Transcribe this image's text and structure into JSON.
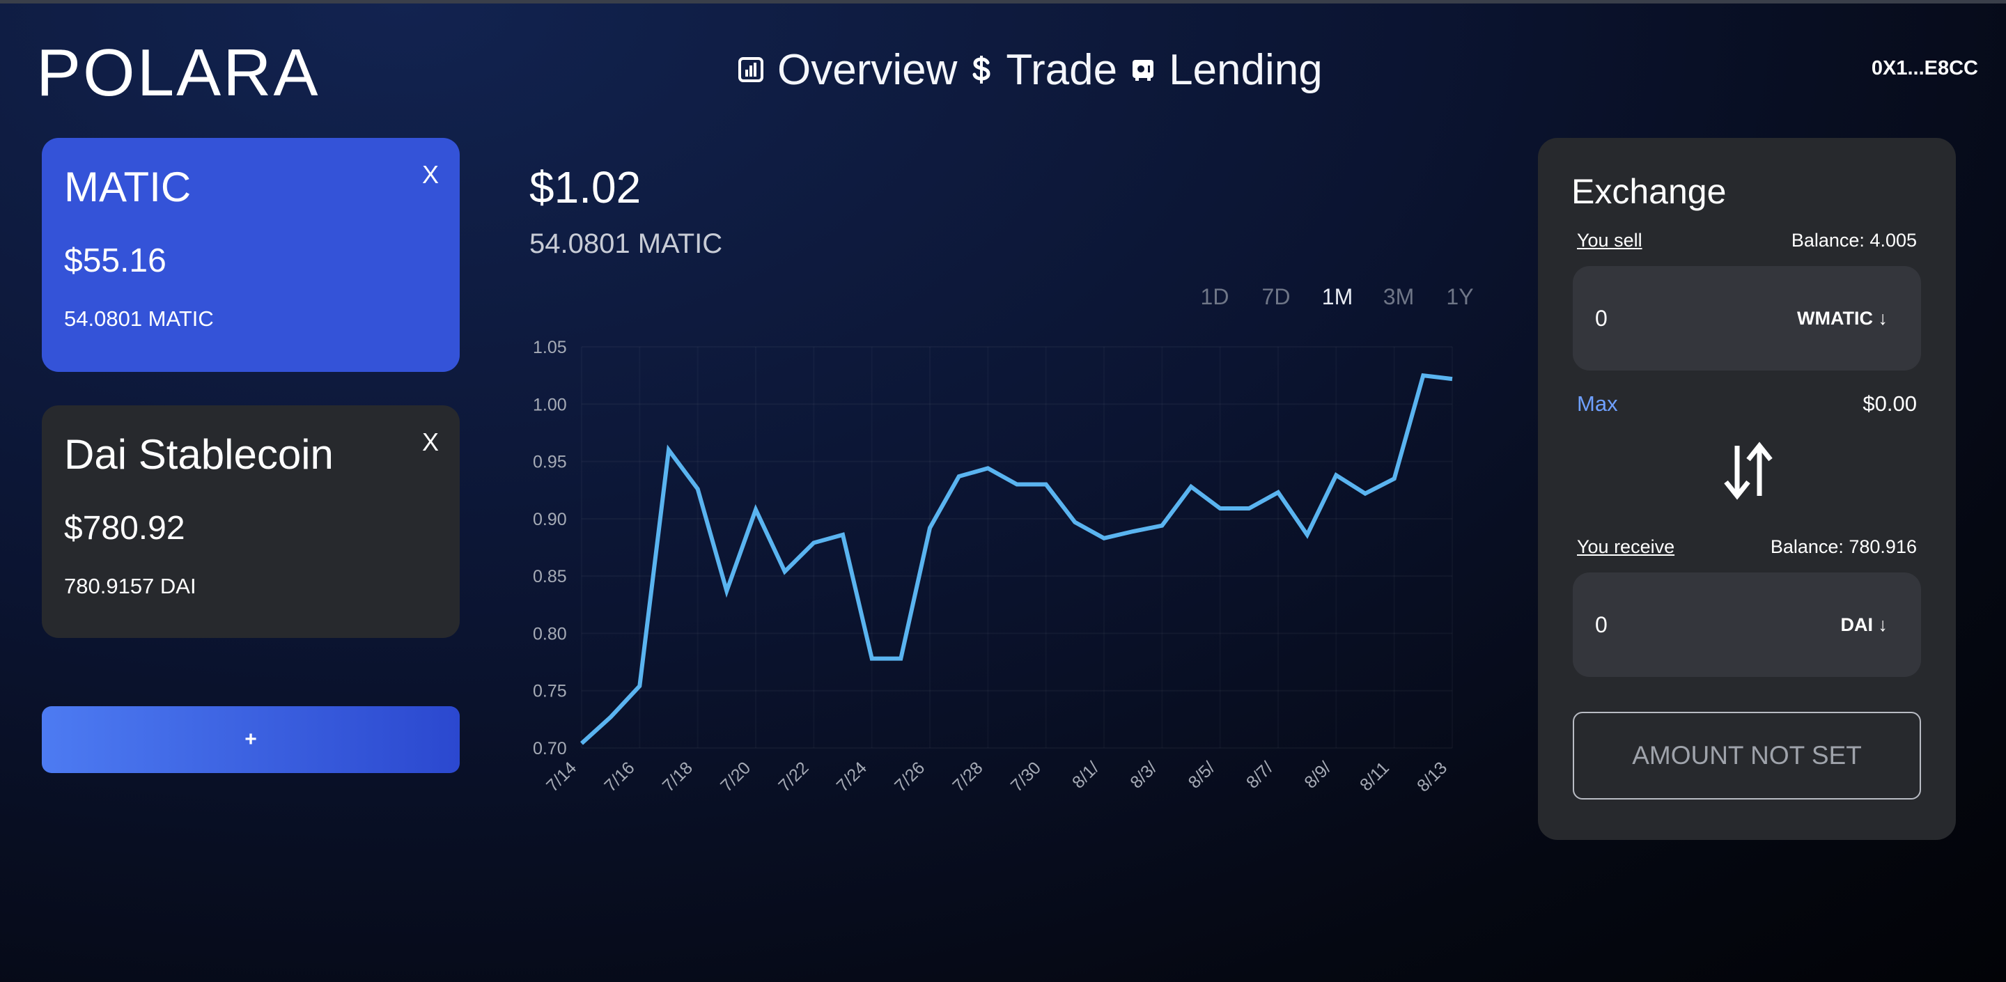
{
  "app": {
    "logo": "POLARA",
    "wallet": "0X1...E8CC"
  },
  "nav": [
    {
      "label": "Overview",
      "icon": "chart-icon"
    },
    {
      "label": "Trade",
      "icon": "dollar-icon"
    },
    {
      "label": "Lending",
      "icon": "safe-icon"
    }
  ],
  "tokens": [
    {
      "name": "MATIC",
      "value": "$55.16",
      "amount": "54.0801 MATIC",
      "close": "X"
    },
    {
      "name": "Dai Stablecoin",
      "value": "$780.92",
      "amount": "780.9157 DAI",
      "close": "X"
    }
  ],
  "add_button": {
    "label": "+"
  },
  "main": {
    "price": "$1.02",
    "subtitle": "54.0801 MATIC"
  },
  "ranges": [
    "1D",
    "7D",
    "1M",
    "3M",
    "1Y"
  ],
  "selected_range": "1M",
  "chart_data": {
    "type": "line",
    "x": [
      "7/14",
      "7/15",
      "7/16",
      "7/17",
      "7/18",
      "7/19",
      "7/20",
      "7/21",
      "7/22",
      "7/23",
      "7/24",
      "7/25",
      "7/26",
      "7/27",
      "7/28",
      "7/29",
      "7/30",
      "7/31",
      "8/1/",
      "8/2",
      "8/3/",
      "8/4",
      "8/5/",
      "8/6",
      "8/7/",
      "8/8",
      "8/9/",
      "8/10",
      "8/11",
      "8/12",
      "8/13"
    ],
    "x_tick_labels": [
      "7/14",
      "7/16",
      "7/18",
      "7/20",
      "7/22",
      "7/24",
      "7/26",
      "7/28",
      "7/30",
      "8/1/",
      "8/3/",
      "8/5/",
      "8/7/",
      "8/9/",
      "8/11",
      "8/13"
    ],
    "series": [
      {
        "values": [
          0.704,
          0.727,
          0.754,
          0.96,
          0.926,
          0.837,
          0.908,
          0.854,
          0.879,
          0.886,
          0.778,
          0.778,
          0.892,
          0.937,
          0.944,
          0.93,
          0.93,
          0.897,
          0.883,
          0.889,
          0.894,
          0.928,
          0.909,
          0.909,
          0.923,
          0.886,
          0.938,
          0.922,
          0.935,
          1.025,
          1.022
        ]
      }
    ],
    "ylim": [
      0.7,
      1.05
    ],
    "y_ticks": [
      "0.70",
      "0.75",
      "0.80",
      "0.85",
      "0.90",
      "0.95",
      "1.00",
      "1.05"
    ],
    "line_color": "#5ab4f0",
    "grid": true
  },
  "exchange": {
    "title": "Exchange",
    "sell_label": "You sell",
    "sell_balance": "Balance: 4.005",
    "sell_value": "0",
    "sell_token": "WMATIC ↓",
    "max_label": "Max",
    "usd_value": "$0.00",
    "receive_label": "You receive",
    "receive_balance": "Balance: 780.916",
    "receive_value": "0",
    "receive_token": "DAI ↓",
    "action_label": "AMOUNT NOT SET"
  }
}
